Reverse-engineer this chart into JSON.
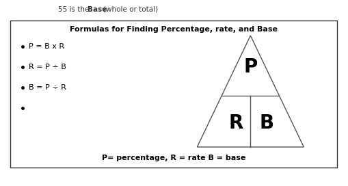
{
  "top_text_normal1": "55 is the ",
  "top_text_bold": "Base",
  "top_text_normal2": "(whole or total)",
  "box_title": "Formulas for Finding Percentage, rate, and Base",
  "bullets": [
    "P = B x R",
    "R = P ÷ B",
    "B = P ÷ R",
    ""
  ],
  "bottom_text": "P= percentage, R = rate B = base",
  "bg_color": "#ffffff",
  "box_border_color": "#000000"
}
